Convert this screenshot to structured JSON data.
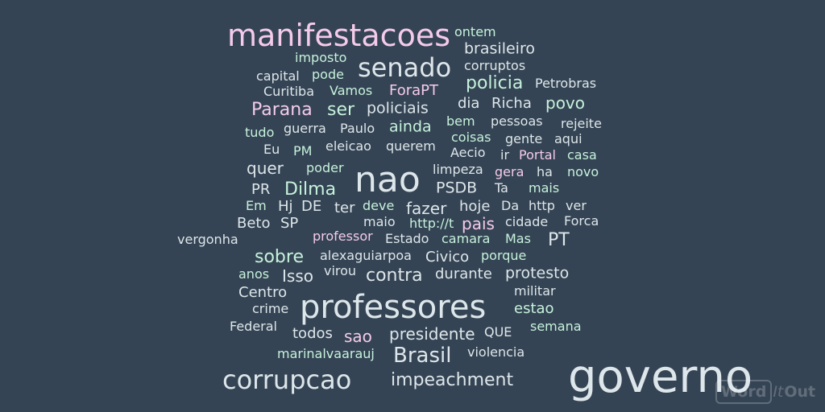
{
  "colors": {
    "background": "#354454",
    "light": "#dde6ea",
    "pink": "#f4cbea",
    "mint": "#c6f2dc"
  },
  "words": [
    {
      "text": "manifestacoes",
      "color": "pink"
    },
    {
      "text": "ontem",
      "color": "mint"
    },
    {
      "text": "brasileiro",
      "color": "light"
    },
    {
      "text": "imposto",
      "color": "mint"
    },
    {
      "text": "senado",
      "color": "light"
    },
    {
      "text": "corruptos",
      "color": "light"
    },
    {
      "text": "capital",
      "color": "light"
    },
    {
      "text": "pode",
      "color": "mint"
    },
    {
      "text": "Curitiba",
      "color": "light"
    },
    {
      "text": "Vamos",
      "color": "mint"
    },
    {
      "text": "ForaPT",
      "color": "pink"
    },
    {
      "text": "policia",
      "color": "mint"
    },
    {
      "text": "Petrobras",
      "color": "light"
    },
    {
      "text": "Parana",
      "color": "pink"
    },
    {
      "text": "ser",
      "color": "mint"
    },
    {
      "text": "policiais",
      "color": "light"
    },
    {
      "text": "dia",
      "color": "light"
    },
    {
      "text": "Richa",
      "color": "light"
    },
    {
      "text": "povo",
      "color": "mint"
    },
    {
      "text": "tudo",
      "color": "mint"
    },
    {
      "text": "guerra",
      "color": "light"
    },
    {
      "text": "Paulo",
      "color": "light"
    },
    {
      "text": "ainda",
      "color": "mint"
    },
    {
      "text": "bem",
      "color": "mint"
    },
    {
      "text": "pessoas",
      "color": "light"
    },
    {
      "text": "rejeite",
      "color": "light"
    },
    {
      "text": "Eu",
      "color": "light"
    },
    {
      "text": "PM",
      "color": "mint"
    },
    {
      "text": "eleicao",
      "color": "light"
    },
    {
      "text": "querem",
      "color": "light"
    },
    {
      "text": "coisas",
      "color": "mint"
    },
    {
      "text": "gente",
      "color": "light"
    },
    {
      "text": "aqui",
      "color": "light"
    },
    {
      "text": "Aecio",
      "color": "light"
    },
    {
      "text": "ir",
      "color": "light"
    },
    {
      "text": "Portal",
      "color": "pink"
    },
    {
      "text": "casa",
      "color": "mint"
    },
    {
      "text": "quer",
      "color": "light"
    },
    {
      "text": "poder",
      "color": "mint"
    },
    {
      "text": "nao",
      "color": "light"
    },
    {
      "text": "limpeza",
      "color": "light"
    },
    {
      "text": "gera",
      "color": "pink"
    },
    {
      "text": "ha",
      "color": "light"
    },
    {
      "text": "novo",
      "color": "mint"
    },
    {
      "text": "PR",
      "color": "light"
    },
    {
      "text": "Dilma",
      "color": "mint"
    },
    {
      "text": "PSDB",
      "color": "light"
    },
    {
      "text": "Ta",
      "color": "light"
    },
    {
      "text": "mais",
      "color": "mint"
    },
    {
      "text": "Em",
      "color": "mint"
    },
    {
      "text": "Hj",
      "color": "light"
    },
    {
      "text": "DE",
      "color": "light"
    },
    {
      "text": "ter",
      "color": "light"
    },
    {
      "text": "deve",
      "color": "mint"
    },
    {
      "text": "fazer",
      "color": "light"
    },
    {
      "text": "hoje",
      "color": "light"
    },
    {
      "text": "Da",
      "color": "light"
    },
    {
      "text": "http",
      "color": "light"
    },
    {
      "text": "ver",
      "color": "light"
    },
    {
      "text": "Beto",
      "color": "light"
    },
    {
      "text": "SP",
      "color": "light"
    },
    {
      "text": "maio",
      "color": "light"
    },
    {
      "text": "http://t",
      "color": "mint"
    },
    {
      "text": "pais",
      "color": "pink"
    },
    {
      "text": "cidade",
      "color": "light"
    },
    {
      "text": "Forca",
      "color": "light"
    },
    {
      "text": "vergonha",
      "color": "light"
    },
    {
      "text": "professor",
      "color": "pink"
    },
    {
      "text": "Estado",
      "color": "light"
    },
    {
      "text": "camara",
      "color": "mint"
    },
    {
      "text": "Mas",
      "color": "mint"
    },
    {
      "text": "PT",
      "color": "light"
    },
    {
      "text": "sobre",
      "color": "mint"
    },
    {
      "text": "alexaguiarpoa",
      "color": "light"
    },
    {
      "text": "Civico",
      "color": "light"
    },
    {
      "text": "porque",
      "color": "mint"
    },
    {
      "text": "anos",
      "color": "mint"
    },
    {
      "text": "Isso",
      "color": "light"
    },
    {
      "text": "virou",
      "color": "light"
    },
    {
      "text": "contra",
      "color": "light"
    },
    {
      "text": "durante",
      "color": "light"
    },
    {
      "text": "protesto",
      "color": "light"
    },
    {
      "text": "Centro",
      "color": "light"
    },
    {
      "text": "militar",
      "color": "light"
    },
    {
      "text": "crime",
      "color": "light"
    },
    {
      "text": "professores",
      "color": "light"
    },
    {
      "text": "estao",
      "color": "mint"
    },
    {
      "text": "Federal",
      "color": "light"
    },
    {
      "text": "todos",
      "color": "light"
    },
    {
      "text": "sao",
      "color": "pink"
    },
    {
      "text": "presidente",
      "color": "light"
    },
    {
      "text": "QUE",
      "color": "light"
    },
    {
      "text": "semana",
      "color": "mint"
    },
    {
      "text": "marinalvaarauj",
      "color": "mint"
    },
    {
      "text": "Brasil",
      "color": "light"
    },
    {
      "text": "violencia",
      "color": "light"
    },
    {
      "text": "corrupcao",
      "color": "light"
    },
    {
      "text": "impeachment",
      "color": "light"
    },
    {
      "text": "governo",
      "color": "light"
    }
  ],
  "logo": {
    "word": "Word",
    "it": "It",
    "out": "Out"
  }
}
